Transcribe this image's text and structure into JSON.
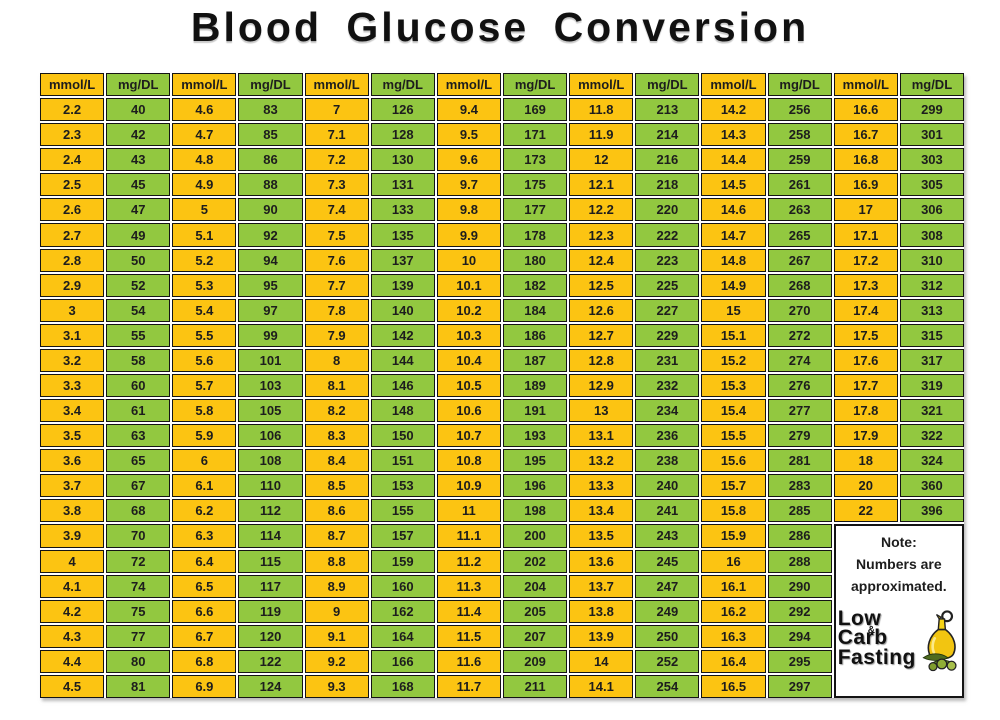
{
  "title": "Blood Glucose Conversion",
  "colors": {
    "yellow": "#fcc412",
    "green": "#92c840",
    "border": "#141414",
    "text": "#1d1d1d"
  },
  "note": {
    "line1": "Note:",
    "line2": "Numbers are",
    "line3": "approximated."
  },
  "logo": {
    "line1": "Low Carb",
    "amp": "&",
    "line2": "Fasting",
    "icon": "olive-oil-bottle-icon"
  },
  "chart_data": {
    "type": "table",
    "title": "Blood Glucose Conversion",
    "headers": {
      "mmol": "mmol/L",
      "mgdl": "mg/DL"
    },
    "pairs": [
      {
        "mmol": [
          "2.2",
          "2.3",
          "2.4",
          "2.5",
          "2.6",
          "2.7",
          "2.8",
          "2.9",
          "3",
          "3.1",
          "3.2",
          "3.3",
          "3.4",
          "3.5",
          "3.6",
          "3.7",
          "3.8",
          "3.9",
          "4",
          "4.1",
          "4.2",
          "4.3",
          "4.4",
          "4.5"
        ],
        "mgdl": [
          "40",
          "42",
          "43",
          "45",
          "47",
          "49",
          "50",
          "52",
          "54",
          "55",
          "58",
          "60",
          "61",
          "63",
          "65",
          "67",
          "68",
          "70",
          "72",
          "74",
          "75",
          "77",
          "80",
          "81"
        ]
      },
      {
        "mmol": [
          "4.6",
          "4.7",
          "4.8",
          "4.9",
          "5",
          "5.1",
          "5.2",
          "5.3",
          "5.4",
          "5.5",
          "5.6",
          "5.7",
          "5.8",
          "5.9",
          "6",
          "6.1",
          "6.2",
          "6.3",
          "6.4",
          "6.5",
          "6.6",
          "6.7",
          "6.8",
          "6.9"
        ],
        "mgdl": [
          "83",
          "85",
          "86",
          "88",
          "90",
          "92",
          "94",
          "95",
          "97",
          "99",
          "101",
          "103",
          "105",
          "106",
          "108",
          "110",
          "112",
          "114",
          "115",
          "117",
          "119",
          "120",
          "122",
          "124"
        ]
      },
      {
        "mmol": [
          "7",
          "7.1",
          "7.2",
          "7.3",
          "7.4",
          "7.5",
          "7.6",
          "7.7",
          "7.8",
          "7.9",
          "8",
          "8.1",
          "8.2",
          "8.3",
          "8.4",
          "8.5",
          "8.6",
          "8.7",
          "8.8",
          "8.9",
          "9",
          "9.1",
          "9.2",
          "9.3"
        ],
        "mgdl": [
          "126",
          "128",
          "130",
          "131",
          "133",
          "135",
          "137",
          "139",
          "140",
          "142",
          "144",
          "146",
          "148",
          "150",
          "151",
          "153",
          "155",
          "157",
          "159",
          "160",
          "162",
          "164",
          "166",
          "168"
        ]
      },
      {
        "mmol": [
          "9.4",
          "9.5",
          "9.6",
          "9.7",
          "9.8",
          "9.9",
          "10",
          "10.1",
          "10.2",
          "10.3",
          "10.4",
          "10.5",
          "10.6",
          "10.7",
          "10.8",
          "10.9",
          "11",
          "11.1",
          "11.2",
          "11.3",
          "11.4",
          "11.5",
          "11.6",
          "11.7"
        ],
        "mgdl": [
          "169",
          "171",
          "173",
          "175",
          "177",
          "178",
          "180",
          "182",
          "184",
          "186",
          "187",
          "189",
          "191",
          "193",
          "195",
          "196",
          "198",
          "200",
          "202",
          "204",
          "205",
          "207",
          "209",
          "211"
        ]
      },
      {
        "mmol": [
          "11.8",
          "11.9",
          "12",
          "12.1",
          "12.2",
          "12.3",
          "12.4",
          "12.5",
          "12.6",
          "12.7",
          "12.8",
          "12.9",
          "13",
          "13.1",
          "13.2",
          "13.3",
          "13.4",
          "13.5",
          "13.6",
          "13.7",
          "13.8",
          "13.9",
          "14",
          "14.1"
        ],
        "mgdl": [
          "213",
          "214",
          "216",
          "218",
          "220",
          "222",
          "223",
          "225",
          "227",
          "229",
          "231",
          "232",
          "234",
          "236",
          "238",
          "240",
          "241",
          "243",
          "245",
          "247",
          "249",
          "250",
          "252",
          "254"
        ]
      },
      {
        "mmol": [
          "14.2",
          "14.3",
          "14.4",
          "14.5",
          "14.6",
          "14.7",
          "14.8",
          "14.9",
          "15",
          "15.1",
          "15.2",
          "15.3",
          "15.4",
          "15.5",
          "15.6",
          "15.7",
          "15.8",
          "15.9",
          "16",
          "16.1",
          "16.2",
          "16.3",
          "16.4",
          "16.5"
        ],
        "mgdl": [
          "256",
          "258",
          "259",
          "261",
          "263",
          "265",
          "267",
          "268",
          "270",
          "272",
          "274",
          "276",
          "277",
          "279",
          "281",
          "283",
          "285",
          "286",
          "288",
          "290",
          "292",
          "294",
          "295",
          "297"
        ]
      },
      {
        "mmol": [
          "16.6",
          "16.7",
          "16.8",
          "16.9",
          "17",
          "17.1",
          "17.2",
          "17.3",
          "17.4",
          "17.5",
          "17.6",
          "17.7",
          "17.8",
          "17.9",
          "18",
          "20",
          "22"
        ],
        "mgdl": [
          "299",
          "301",
          "303",
          "305",
          "306",
          "308",
          "310",
          "312",
          "313",
          "315",
          "317",
          "319",
          "321",
          "322",
          "324",
          "360",
          "396"
        ]
      }
    ]
  }
}
